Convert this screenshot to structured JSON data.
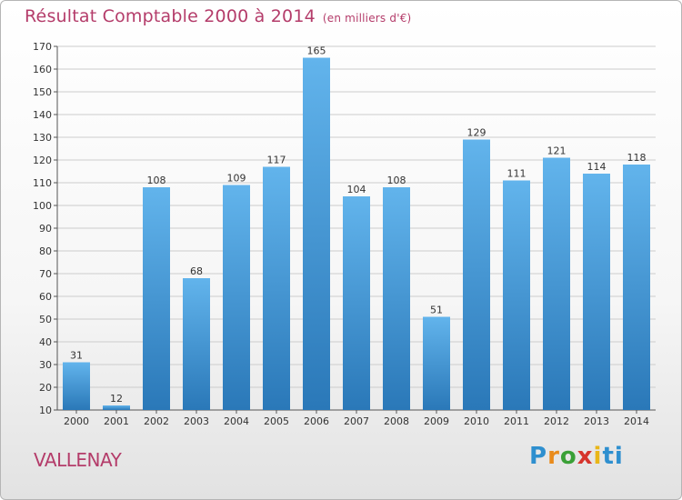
{
  "title": "Résultat Comptable 2000 à 2014",
  "unit": "(en milliers d'€)",
  "town": "VALLENAY",
  "logo": [
    "P",
    "r",
    "o",
    "x",
    "i",
    "ti"
  ],
  "colors": {
    "bar_top": "#62b4ec",
    "bar_bottom": "#2a78b8",
    "title": "#b43c6a",
    "grid": "#cccccc"
  },
  "chart_data": {
    "type": "bar",
    "title": "Résultat Comptable 2000 à 2014",
    "subtitle": "(en milliers d'€)",
    "categories": [
      "2000",
      "2001",
      "2002",
      "2003",
      "2004",
      "2005",
      "2006",
      "2007",
      "2008",
      "2009",
      "2010",
      "2011",
      "2012",
      "2013",
      "2014"
    ],
    "values": [
      31,
      12,
      108,
      68,
      109,
      117,
      165,
      104,
      108,
      51,
      129,
      111,
      121,
      114,
      118
    ],
    "ylim": [
      10,
      170
    ],
    "yticks": [
      10,
      20,
      30,
      40,
      50,
      60,
      70,
      80,
      90,
      100,
      110,
      120,
      130,
      140,
      150,
      160,
      170
    ],
    "grid": true,
    "data_labels": true
  }
}
